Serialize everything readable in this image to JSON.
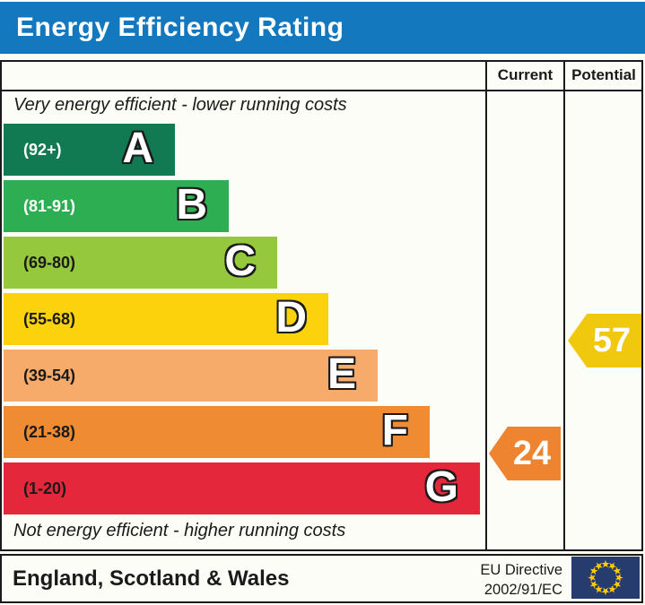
{
  "title": "Energy Efficiency Rating",
  "columns": {
    "current": "Current",
    "potential": "Potential"
  },
  "chart_data": {
    "type": "bar",
    "title": "Energy Efficiency Rating",
    "top_note": "Very energy efficient - lower running costs",
    "bottom_note": "Not energy efficient - higher running costs",
    "categories": [
      "A",
      "B",
      "C",
      "D",
      "E",
      "F",
      "G"
    ],
    "bands": [
      {
        "grade": "A",
        "range": "(92+)",
        "score_range": [
          92,
          100
        ],
        "color": "#127a53",
        "range_color": "#ffffff"
      },
      {
        "grade": "B",
        "range": "(81-91)",
        "score_range": [
          81,
          91
        ],
        "color": "#2eae52",
        "range_color": "#ffffff"
      },
      {
        "grade": "C",
        "range": "(69-80)",
        "score_range": [
          69,
          80
        ],
        "color": "#95c83c",
        "range_color": "#1a1a1a"
      },
      {
        "grade": "D",
        "range": "(55-68)",
        "score_range": [
          55,
          68
        ],
        "color": "#fbd20b",
        "range_color": "#1a1a1a"
      },
      {
        "grade": "E",
        "range": "(39-54)",
        "score_range": [
          39,
          54
        ],
        "color": "#f7ab6b",
        "range_color": "#1a1a1a"
      },
      {
        "grade": "F",
        "range": "(21-38)",
        "score_range": [
          21,
          38
        ],
        "color": "#ee8b33",
        "range_color": "#1a1a1a"
      },
      {
        "grade": "G",
        "range": "(1-20)",
        "score_range": [
          1,
          20
        ],
        "color": "#e4273b",
        "range_color": "#1a1a1a"
      }
    ],
    "ratings": {
      "current": {
        "value": "24",
        "band": "F",
        "color": "#ee8430"
      },
      "potential": {
        "value": "57",
        "band": "D",
        "color": "#f0c80d"
      }
    }
  },
  "footer": {
    "region": "England, Scotland & Wales",
    "directive_line1": "EU Directive",
    "directive_line2": "2002/91/EC"
  },
  "colors": {
    "title_bg": "#1478be",
    "title_text": "#ffffff",
    "border": "#1a1a1a",
    "eu_flag_bg": "#263b6e",
    "eu_star": "#ffcc00"
  }
}
